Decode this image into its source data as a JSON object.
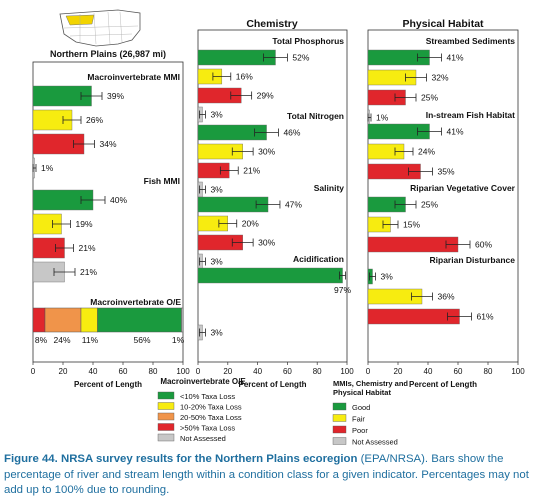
{
  "caption": {
    "bold": "Figure 44. NRSA survey results for the Northern Plains ecoregion",
    "rest": " (EPA/NRSA). Bars show the percentage of river and stream length within a condition class for a given indicator. Percentages may not add up to 100% due to rounding."
  },
  "colors": {
    "good": "#1a9a3e",
    "fair": "#f7ec10",
    "poor": "#e0262c",
    "not_assessed": "#c7c7c7",
    "taxa_10_20": "#f7ec10",
    "taxa_20_50": "#f0944a",
    "taxa_gt50": "#e0262c",
    "taxa_lt10": "#1a9a3e",
    "caption": "#1f6f9f"
  },
  "icons": {
    "locator_map": "us-map-northern-plains-highlight-icon"
  },
  "chart_data": [
    {
      "type": "bar",
      "panel": "left",
      "title": "Northern Plains (26,987 mi)",
      "xlabel": "Percent of Length",
      "xlim": [
        0,
        100
      ],
      "xticks": [
        0,
        20,
        40,
        60,
        80,
        100
      ],
      "groups": [
        {
          "name": "Macroinvertebrate MMI",
          "bars": [
            {
              "class": "good",
              "value": 39,
              "err": 7
            },
            {
              "class": "fair",
              "value": 26,
              "err": 6
            },
            {
              "class": "poor",
              "value": 34,
              "err": 7
            },
            {
              "class": "not_assessed",
              "value": 1,
              "err": 1
            }
          ]
        },
        {
          "name": "Fish MMI",
          "bars": [
            {
              "class": "good",
              "value": 40,
              "err": 8
            },
            {
              "class": "fair",
              "value": 19,
              "err": 6
            },
            {
              "class": "poor",
              "value": 21,
              "err": 6
            },
            {
              "class": "not_assessed",
              "value": 21,
              "err": 7
            }
          ]
        }
      ],
      "stacked": {
        "name": "Macroinvertebrate O/E",
        "segments": [
          {
            "class": "taxa_gt50",
            "value": 8
          },
          {
            "class": "taxa_20_50",
            "value": 24
          },
          {
            "class": "taxa_10_20",
            "value": 11
          },
          {
            "class": "taxa_lt10",
            "value": 56
          },
          {
            "class": "not_assessed",
            "value": 1
          }
        ],
        "labels": [
          "8%",
          "24%",
          "11%",
          "56%",
          "1%"
        ]
      }
    },
    {
      "type": "bar",
      "panel": "middle",
      "title": "Chemistry",
      "xlabel": "Percent of Length",
      "xlim": [
        0,
        100
      ],
      "xticks": [
        0,
        20,
        40,
        60,
        80,
        100
      ],
      "groups": [
        {
          "name": "Total Phosphorus",
          "bars": [
            {
              "class": "good",
              "value": 52,
              "err": 8
            },
            {
              "class": "fair",
              "value": 16,
              "err": 6
            },
            {
              "class": "poor",
              "value": 29,
              "err": 7
            },
            {
              "class": "not_assessed",
              "value": 3,
              "err": 2
            }
          ]
        },
        {
          "name": "Total Nitrogen",
          "bars": [
            {
              "class": "good",
              "value": 46,
              "err": 8
            },
            {
              "class": "fair",
              "value": 30,
              "err": 7
            },
            {
              "class": "poor",
              "value": 21,
              "err": 6
            },
            {
              "class": "not_assessed",
              "value": 3,
              "err": 2
            }
          ]
        },
        {
          "name": "Salinity",
          "bars": [
            {
              "class": "good",
              "value": 47,
              "err": 8
            },
            {
              "class": "fair",
              "value": 20,
              "err": 6
            },
            {
              "class": "poor",
              "value": 30,
              "err": 7
            },
            {
              "class": "not_assessed",
              "value": 3,
              "err": 2
            }
          ]
        },
        {
          "name": "Acidification",
          "bars": [
            {
              "class": "good",
              "value": 97,
              "err": 2,
              "label_below": true
            },
            {
              "class": "fair",
              "value": 0,
              "err": 0,
              "hidden": true
            },
            {
              "class": "poor",
              "value": 0,
              "err": 0,
              "hidden": true
            },
            {
              "class": "not_assessed",
              "value": 3,
              "err": 2
            }
          ]
        }
      ]
    },
    {
      "type": "bar",
      "panel": "right",
      "title": "Physical Habitat",
      "xlabel": "Percent of Length",
      "xlim": [
        0,
        100
      ],
      "xticks": [
        0,
        20,
        40,
        60,
        80,
        100
      ],
      "groups": [
        {
          "name": "Streambed Sediments",
          "bars": [
            {
              "class": "good",
              "value": 41,
              "err": 8
            },
            {
              "class": "fair",
              "value": 32,
              "err": 7
            },
            {
              "class": "poor",
              "value": 25,
              "err": 7
            },
            {
              "class": "not_assessed",
              "value": 1,
              "err": 1
            }
          ]
        },
        {
          "name": "In-stream Fish Habitat",
          "bars": [
            {
              "class": "good",
              "value": 41,
              "err": 8
            },
            {
              "class": "fair",
              "value": 24,
              "err": 6
            },
            {
              "class": "poor",
              "value": 35,
              "err": 8
            }
          ]
        },
        {
          "name": "Riparian Vegetative Cover",
          "bars": [
            {
              "class": "good",
              "value": 25,
              "err": 7
            },
            {
              "class": "fair",
              "value": 15,
              "err": 5
            },
            {
              "class": "poor",
              "value": 60,
              "err": 8
            }
          ]
        },
        {
          "name": "Riparian Disturbance",
          "bars": [
            {
              "class": "good",
              "value": 3,
              "err": 2
            },
            {
              "class": "fair",
              "value": 36,
              "err": 7
            },
            {
              "class": "poor",
              "value": 61,
              "err": 8
            }
          ]
        }
      ]
    }
  ],
  "legends": {
    "oe": {
      "title": "Macroinvertebrate O/E",
      "items": [
        {
          "class": "taxa_lt10",
          "label": "<10% Taxa Loss"
        },
        {
          "class": "taxa_10_20",
          "label": "10-20% Taxa Loss"
        },
        {
          "class": "taxa_20_50",
          "label": "20-50% Taxa Loss"
        },
        {
          "class": "taxa_gt50",
          "label": ">50% Taxa Loss"
        },
        {
          "class": "not_assessed",
          "label": "Not Assessed"
        }
      ]
    },
    "mmi": {
      "title_lines": [
        "MMIs, Chemistry and",
        "Physical Habitat"
      ],
      "items": [
        {
          "class": "good",
          "label": "Good"
        },
        {
          "class": "fair",
          "label": "Fair"
        },
        {
          "class": "poor",
          "label": "Poor"
        },
        {
          "class": "not_assessed",
          "label": "Not Assessed"
        }
      ]
    }
  }
}
